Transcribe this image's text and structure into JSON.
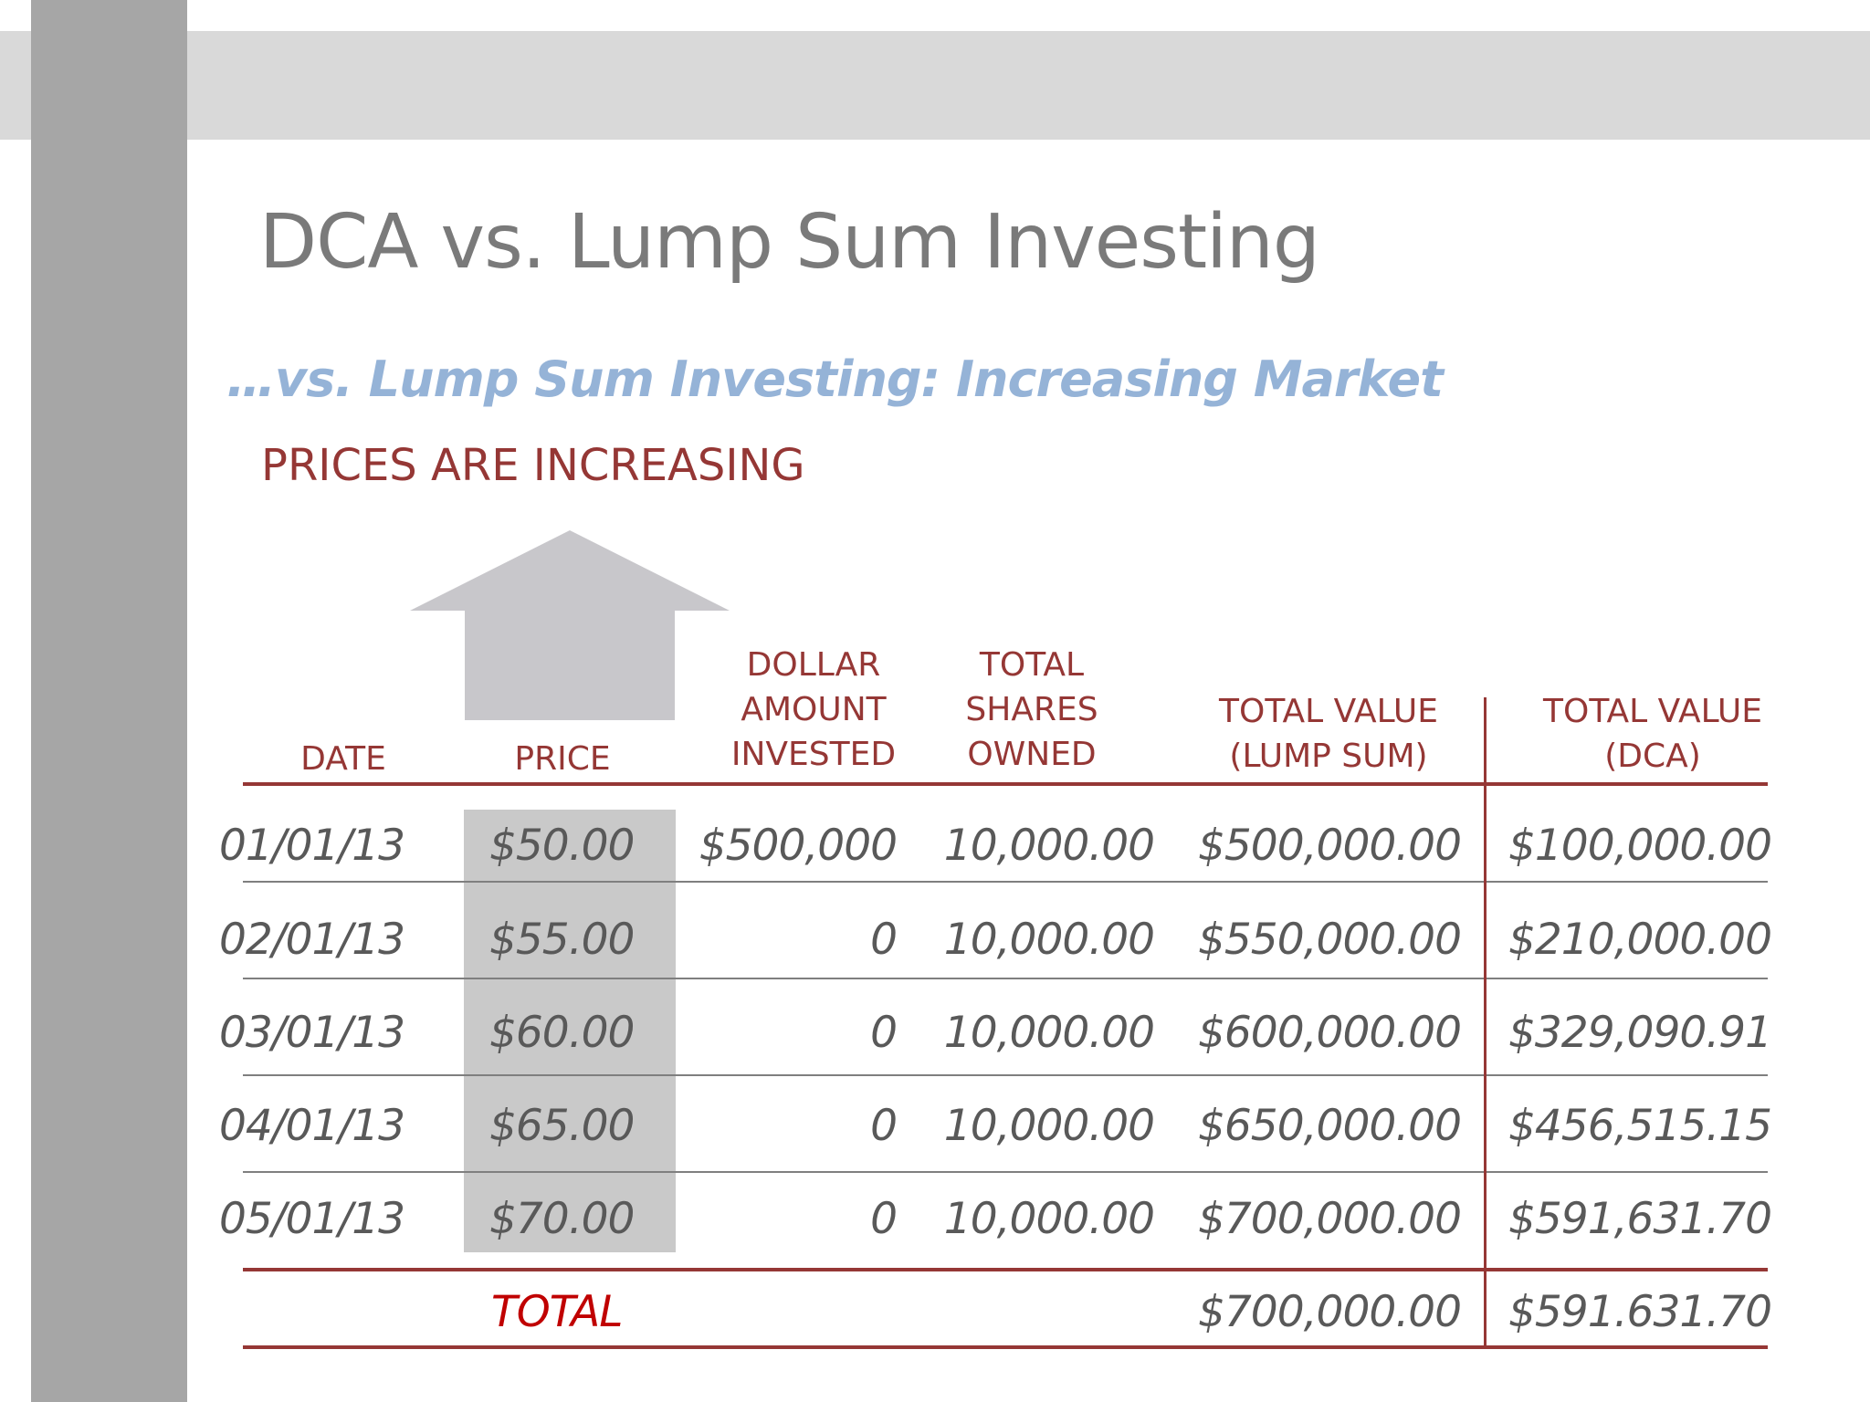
{
  "slide": {
    "title": "DCA vs. Lump Sum Investing",
    "subtitle": "…vs. Lump Sum Investing: Increasing Market",
    "trend_label": "PRICES ARE INCREASING",
    "arrow_icon": "up-arrow-icon"
  },
  "colors": {
    "title": "#7a7a7a",
    "subtitle": "#95b3d7",
    "accent_red": "#953735",
    "total_red": "#c00000",
    "price_highlight": "#c9c9c9",
    "band": "#d9d9d9",
    "side_bar": "#a6a6a6"
  },
  "table": {
    "headers": {
      "date": [
        "DATE"
      ],
      "price": [
        "PRICE"
      ],
      "invested": [
        "DOLLAR",
        "AMOUNT",
        "INVESTED"
      ],
      "shares": [
        "TOTAL",
        "SHARES",
        "OWNED"
      ],
      "lump": [
        "TOTAL VALUE",
        "(LUMP SUM)"
      ],
      "dca": [
        "TOTAL VALUE",
        "(DCA)"
      ]
    },
    "rows": [
      {
        "date": "01/01/13",
        "price": "$50.00",
        "invested": "$500,000",
        "shares": "10,000.00",
        "lump": "$500,000.00",
        "dca": "$100,000.00"
      },
      {
        "date": "02/01/13",
        "price": "$55.00",
        "invested": "0",
        "shares": "10,000.00",
        "lump": "$550,000.00",
        "dca": "$210,000.00"
      },
      {
        "date": "03/01/13",
        "price": "$60.00",
        "invested": "0",
        "shares": "10,000.00",
        "lump": "$600,000.00",
        "dca": "$329,090.91"
      },
      {
        "date": "04/01/13",
        "price": "$65.00",
        "invested": "0",
        "shares": "10,000.00",
        "lump": "$650,000.00",
        "dca": "$456,515.15"
      },
      {
        "date": "05/01/13",
        "price": "$70.00",
        "invested": "0",
        "shares": "10,000.00",
        "lump": "$700,000.00",
        "dca": "$591,631.70"
      }
    ],
    "total": {
      "label": "TOTAL",
      "lump": "$700,000.00",
      "dca": "$591.631.70"
    }
  }
}
